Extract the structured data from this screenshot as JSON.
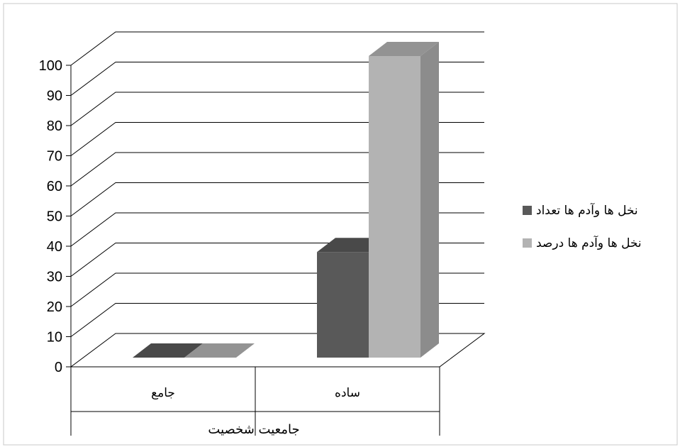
{
  "chart_data": {
    "type": "bar",
    "categories": [
      "جامع",
      "ساده"
    ],
    "series": [
      {
        "name": "نخل ها وآدم ها تعداد",
        "values": [
          0,
          35
        ],
        "color": "#595959"
      },
      {
        "name": "نخل ها وآدم ها درصد",
        "values": [
          0,
          100
        ],
        "color": "#b3b3b3"
      }
    ],
    "xlabel": "جامعیت شخصیت",
    "ylabel": "",
    "ylim": [
      0,
      100
    ],
    "yticks": [
      0,
      10,
      20,
      30,
      40,
      50,
      60,
      70,
      80,
      90,
      100
    ],
    "grid": true,
    "legend": "right",
    "style": "3d-column"
  }
}
